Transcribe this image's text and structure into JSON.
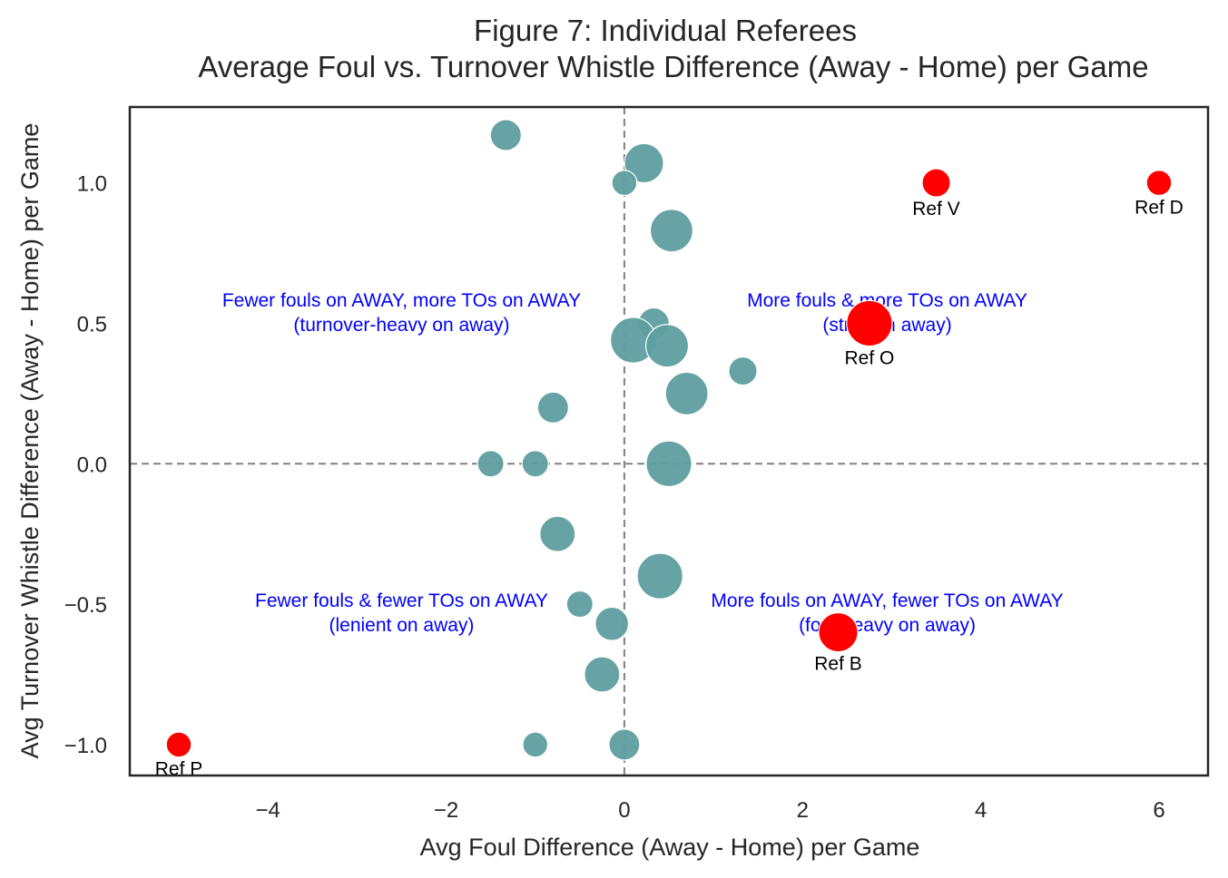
{
  "chart_data": {
    "type": "scatter",
    "title": "Figure 7: Individual Referees",
    "subtitle": "Average Foul vs. Turnover Whistle Difference (Away - Home) per Game",
    "xlabel": "Avg Foul Difference (Away - Home) per Game",
    "ylabel": "Avg Turnover Whistle Difference (Away - Home) per Game",
    "xlim": [
      -5.55,
      6.55
    ],
    "ylim": [
      -1.11,
      1.27
    ],
    "xticks": [
      -4,
      -2,
      0,
      2,
      4,
      6
    ],
    "xtick_labels": [
      "−4",
      "−2",
      "0",
      "2",
      "4",
      "6"
    ],
    "yticks": [
      -1.0,
      -0.5,
      0.0,
      0.5,
      1.0
    ],
    "ytick_labels": [
      "−1.0",
      "−0.5",
      "0.0",
      "0.5",
      "1.0"
    ],
    "grid": false,
    "reference_lines": {
      "x": 0,
      "y": 0,
      "style": "dashed",
      "color": "#808080"
    },
    "colors": {
      "regular": "#5f9ea0",
      "highlight": "#ff0000",
      "annotation": "#0000ff"
    },
    "points": [
      {
        "x": -1.33,
        "y": 1.17,
        "size": 2
      },
      {
        "x": 0.22,
        "y": 1.07,
        "size": 4
      },
      {
        "x": 0.0,
        "y": 1.0,
        "size": 1
      },
      {
        "x": 0.53,
        "y": 0.83,
        "size": 5
      },
      {
        "x": 0.33,
        "y": 0.5,
        "size": 2
      },
      {
        "x": 0.1,
        "y": 0.44,
        "size": 6
      },
      {
        "x": 0.48,
        "y": 0.42,
        "size": 5
      },
      {
        "x": 1.33,
        "y": 0.33,
        "size": 1.5
      },
      {
        "x": 0.7,
        "y": 0.25,
        "size": 5
      },
      {
        "x": -0.8,
        "y": 0.2,
        "size": 2
      },
      {
        "x": -1.5,
        "y": 0.0,
        "size": 1.2
      },
      {
        "x": -1.0,
        "y": 0.0,
        "size": 1.2
      },
      {
        "x": 0.5,
        "y": 0.0,
        "size": 6
      },
      {
        "x": -0.75,
        "y": -0.25,
        "size": 3
      },
      {
        "x": 0.4,
        "y": -0.4,
        "size": 6
      },
      {
        "x": -0.5,
        "y": -0.5,
        "size": 1.2
      },
      {
        "x": -0.14,
        "y": -0.57,
        "size": 2.5
      },
      {
        "x": -0.25,
        "y": -0.75,
        "size": 3
      },
      {
        "x": -1.0,
        "y": -1.0,
        "size": 1
      },
      {
        "x": 0.0,
        "y": -1.0,
        "size": 2
      }
    ],
    "highlighted": [
      {
        "label": "Ref V",
        "x": 3.5,
        "y": 1.0,
        "size": 1.5
      },
      {
        "label": "Ref D",
        "x": 6.0,
        "y": 1.0,
        "size": 1
      },
      {
        "label": "Ref O",
        "x": 2.75,
        "y": 0.5,
        "size": 6
      },
      {
        "label": "Ref B",
        "x": 2.4,
        "y": -0.6,
        "size": 4
      },
      {
        "label": "Ref P",
        "x": -5.0,
        "y": -1.0,
        "size": 1
      }
    ],
    "annotations": [
      {
        "lines": [
          "Fewer fouls on AWAY, more TOs on AWAY",
          "(turnover-heavy on away)"
        ],
        "x": -2.5,
        "y": 0.56
      },
      {
        "lines": [
          "More fouls & more TOs on AWAY",
          "(strict on away)"
        ],
        "x": 2.95,
        "y": 0.56
      },
      {
        "lines": [
          "Fewer fouls & fewer TOs on AWAY",
          "(lenient on away)"
        ],
        "x": -2.5,
        "y": -0.51
      },
      {
        "lines": [
          "More fouls on AWAY, fewer TOs on AWAY",
          "(foul-heavy on away)"
        ],
        "x": 2.95,
        "y": -0.51
      }
    ]
  }
}
